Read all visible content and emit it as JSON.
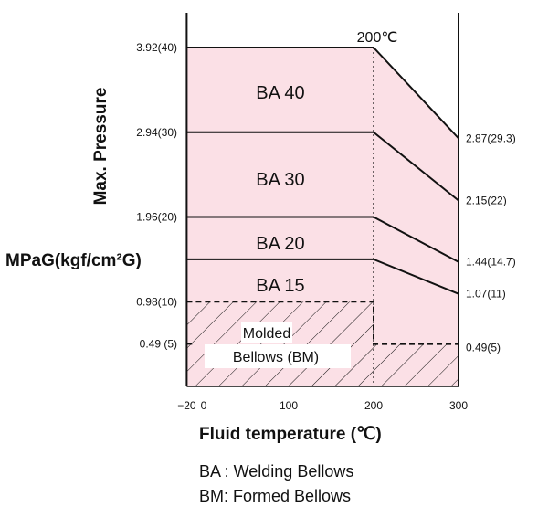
{
  "chart_data": {
    "type": "area",
    "xlabel": "Fluid temperature (℃)",
    "ylabel": "Max. Pressure",
    "yunit": "MPaG(kgf/cm²G)",
    "xlim": [
      -20,
      300
    ],
    "x_ticks": [
      {
        "value": -20,
        "label": "−20"
      },
      {
        "value": 0,
        "label": "0"
      },
      {
        "value": 100,
        "label": "100"
      },
      {
        "value": 200,
        "label": "200"
      },
      {
        "value": 300,
        "label": "300"
      }
    ],
    "y_ticks_left": [
      {
        "value": 3.92,
        "label": "3.92(40)"
      },
      {
        "value": 2.94,
        "label": "2.94(30)"
      },
      {
        "value": 1.96,
        "label": "1.96(20)"
      },
      {
        "value": 0.98,
        "label": "0.98(10)"
      },
      {
        "value": 0.49,
        "label": "0.49 (5)"
      }
    ],
    "y_ticks_right": [
      {
        "value": 2.87,
        "label": "2.87(29.3)"
      },
      {
        "value": 2.15,
        "label": "2.15(22)"
      },
      {
        "value": 1.44,
        "label": "1.44(14.7)"
      },
      {
        "value": 1.07,
        "label": "1.07(11)"
      },
      {
        "value": 0.49,
        "label": "0.49(5)"
      }
    ],
    "series": [
      {
        "name": "BA 40",
        "x": [
          -20,
          200,
          300
        ],
        "y": [
          3.92,
          3.92,
          2.87
        ]
      },
      {
        "name": "BA 30",
        "x": [
          -20,
          200,
          300
        ],
        "y": [
          2.94,
          2.94,
          2.15
        ]
      },
      {
        "name": "BA 20",
        "x": [
          -20,
          200,
          300
        ],
        "y": [
          1.96,
          1.96,
          1.44
        ]
      },
      {
        "name": "BA 15",
        "x": [
          -20,
          200,
          300
        ],
        "y": [
          1.47,
          1.47,
          1.07
        ]
      },
      {
        "name_lines": [
          "Molded",
          "Bellows (BM)"
        ],
        "x": [
          -20,
          200,
          200,
          300
        ],
        "y": [
          0.98,
          0.98,
          0.49,
          0.49
        ]
      }
    ],
    "annotations": [
      {
        "text": "200℃",
        "x": 200,
        "y": 3.92
      }
    ],
    "legend_text": [
      "BA : Welding Bellows",
      "BM: Formed Bellows"
    ],
    "colors": {
      "fill": "#fbe0e6",
      "line": "#111111"
    }
  }
}
